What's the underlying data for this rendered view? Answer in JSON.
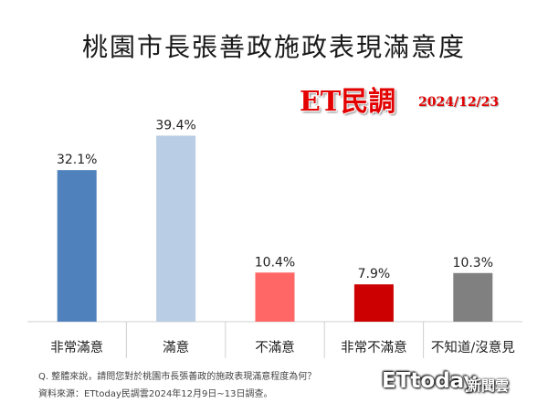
{
  "title": "桃園市長張善政施政表現滿意度",
  "brand": "ET民調",
  "brand_date": "2024/12/23",
  "question": "Q. 整體來說，請問您對於桃園市長張善政的施政表現滿意程度為何？",
  "source": "資料來源：ETtoday民調雲2024年12月9日~13日調查。",
  "watermark": {
    "logo": "ETtoday",
    "sub": "新聞雲"
  },
  "chart_data": {
    "type": "bar",
    "title": "桃園市長張善政施政表現滿意度",
    "categories": [
      "非常滿意",
      "滿意",
      "不滿意",
      "非常不滿意",
      "不知道/沒意見"
    ],
    "values": [
      32.1,
      39.4,
      10.4,
      7.9,
      10.3
    ],
    "data_labels": [
      "32.1%",
      "39.4%",
      "10.4%",
      "7.9%",
      "10.3%"
    ],
    "colors": [
      "#4f81bd",
      "#b9cde5",
      "#ff6666",
      "#cc0000",
      "#808080"
    ],
    "ylim": [
      0,
      42
    ],
    "grid": false,
    "legend": "none",
    "xlabel": "",
    "ylabel": ""
  }
}
